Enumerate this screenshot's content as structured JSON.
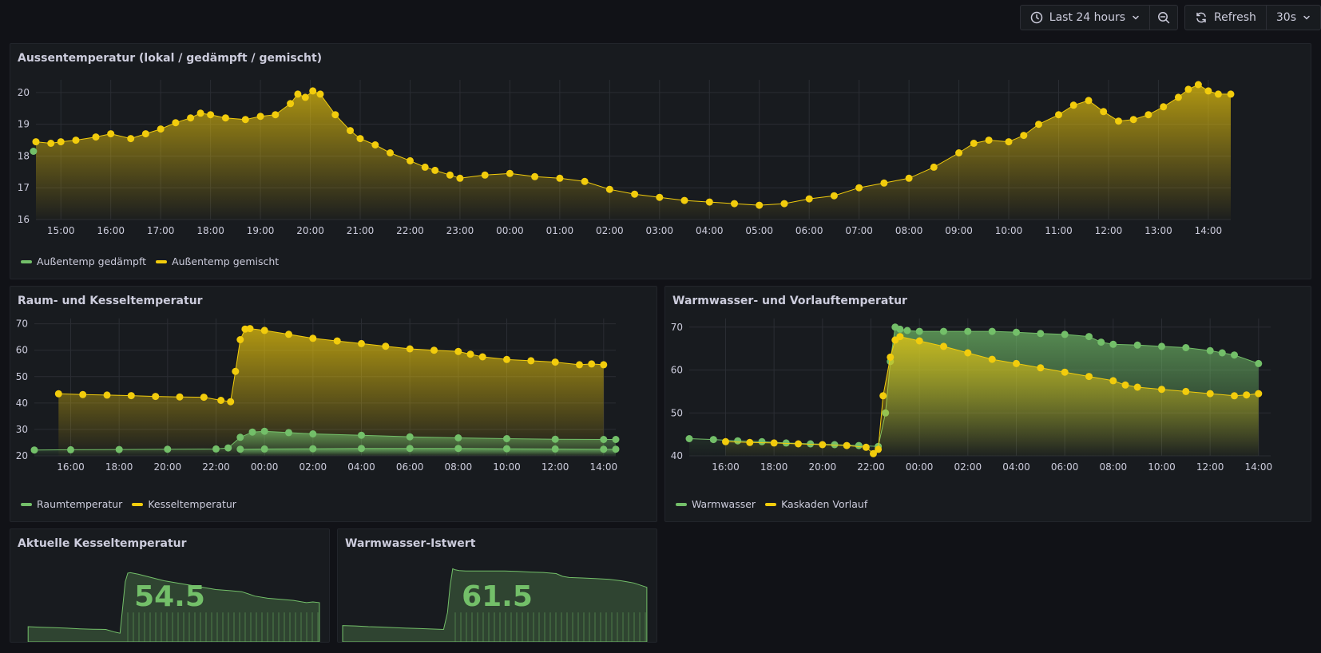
{
  "toolbar": {
    "time_range_label": "Last 24 hours",
    "refresh_label": "Refresh",
    "interval_label": "30s",
    "icons": [
      "clock-icon",
      "chevron-down-icon",
      "zoom-out-icon",
      "refresh-icon"
    ]
  },
  "colors": {
    "yellow": "#f2cc0c",
    "green": "#73bf69",
    "background": "#111217",
    "panel": "#181b1f",
    "grid": "#2a2d33"
  },
  "panels": {
    "aussen": {
      "title": "Aussentemperatur (lokal / gedämpft / gemischt)",
      "legend": [
        "Außentemp gedämpft",
        "Außentemp gemischt"
      ]
    },
    "raum": {
      "title": "Raum- und Kesseltemperatur",
      "legend": [
        "Raumtemperatur",
        "Kesseltemperatur"
      ]
    },
    "warmwasser": {
      "title": "Warmwasser- und Vorlauftemperatur",
      "legend": [
        "Warmwasser",
        "Kaskaden Vorlauf"
      ]
    },
    "kessel_stat": {
      "title": "Aktuelle Kesseltemperatur",
      "value": "54.5"
    },
    "ww_stat": {
      "title": "Warmwasser-Istwert",
      "value": "61.5"
    }
  },
  "chart_data": [
    {
      "type": "line",
      "panel": "aussen",
      "x_ticks": [
        "15:00",
        "16:00",
        "17:00",
        "18:00",
        "19:00",
        "20:00",
        "21:00",
        "22:00",
        "23:00",
        "00:00",
        "01:00",
        "02:00",
        "03:00",
        "04:00",
        "05:00",
        "06:00",
        "07:00",
        "08:00",
        "09:00",
        "10:00",
        "11:00",
        "12:00",
        "13:00",
        "14:00"
      ],
      "y_ticks": [
        16,
        17,
        18,
        19,
        20
      ],
      "ylim": [
        16,
        20.4
      ],
      "xlim": [
        14.5,
        38.45
      ],
      "series": [
        {
          "name": "Außentemp gemischt",
          "color": "#f2cc0c",
          "x": [
            14.5,
            14.8,
            15.0,
            15.3,
            15.7,
            16.0,
            16.4,
            16.7,
            17.0,
            17.3,
            17.6,
            17.8,
            18.0,
            18.3,
            18.7,
            19.0,
            19.3,
            19.6,
            19.75,
            19.9,
            20.05,
            20.2,
            20.5,
            20.8,
            21.0,
            21.3,
            21.6,
            22.0,
            22.3,
            22.5,
            22.8,
            23.0,
            23.5,
            24.0,
            24.5,
            25.0,
            25.5,
            26.0,
            26.5,
            27.0,
            27.5,
            28.0,
            28.5,
            29.0,
            29.5,
            30.0,
            30.5,
            31.0,
            31.5,
            32.0,
            32.5,
            33.0,
            33.3,
            33.6,
            34.0,
            34.3,
            34.6,
            35.0,
            35.3,
            35.6,
            35.9,
            36.2,
            36.5,
            36.8,
            37.1,
            37.4,
            37.6,
            37.8,
            38.0,
            38.2,
            38.45
          ],
          "y": [
            18.45,
            18.4,
            18.45,
            18.5,
            18.6,
            18.7,
            18.55,
            18.7,
            18.85,
            19.05,
            19.2,
            19.35,
            19.3,
            19.2,
            19.15,
            19.25,
            19.3,
            19.65,
            19.95,
            19.85,
            20.05,
            19.95,
            19.3,
            18.8,
            18.55,
            18.35,
            18.1,
            17.85,
            17.65,
            17.55,
            17.4,
            17.3,
            17.4,
            17.45,
            17.35,
            17.3,
            17.2,
            16.95,
            16.8,
            16.7,
            16.6,
            16.55,
            16.5,
            16.45,
            16.5,
            16.65,
            16.75,
            17.0,
            17.15,
            17.3,
            17.65,
            18.1,
            18.4,
            18.5,
            18.45,
            18.65,
            19.0,
            19.3,
            19.6,
            19.75,
            19.4,
            19.1,
            19.15,
            19.3,
            19.55,
            19.85,
            20.1,
            20.25,
            20.05,
            19.95,
            19.95
          ]
        },
        {
          "name": "Außentemp gedämpft",
          "color": "#73bf69",
          "x": [
            14.45
          ],
          "y": [
            18.15
          ]
        }
      ]
    },
    {
      "type": "line",
      "panel": "raum",
      "x_ticks": [
        "16:00",
        "18:00",
        "20:00",
        "22:00",
        "00:00",
        "02:00",
        "04:00",
        "06:00",
        "08:00",
        "10:00",
        "12:00",
        "14:00"
      ],
      "y_ticks": [
        20,
        30,
        40,
        50,
        60,
        70
      ],
      "ylim": [
        20,
        72
      ],
      "xlim": [
        14.5,
        38.5
      ],
      "series": [
        {
          "name": "Kesseltemperatur",
          "color": "#f2cc0c",
          "x": [
            15.5,
            16.5,
            17.5,
            18.5,
            19.5,
            20.5,
            21.5,
            22.2,
            22.6,
            22.8,
            23.0,
            23.2,
            23.4,
            24.0,
            25.0,
            26.0,
            27.0,
            28.0,
            29.0,
            30.0,
            31.0,
            32.0,
            32.5,
            33.0,
            34.0,
            35.0,
            36.0,
            37.0,
            37.5,
            38.0
          ],
          "y": [
            43.5,
            43.2,
            43,
            42.8,
            42.5,
            42.3,
            42.2,
            41,
            40.5,
            52,
            64,
            68,
            68.2,
            67.5,
            66,
            64.5,
            63.5,
            62.5,
            61.5,
            60.5,
            60,
            59.5,
            58.5,
            57.5,
            56.5,
            56,
            55.5,
            54.5,
            54.8,
            54.5
          ]
        },
        {
          "name": "Raumtemperatur",
          "color": "#73bf69",
          "x": [
            14.5,
            16,
            18,
            20,
            22,
            22.5,
            23,
            23.5,
            24,
            25,
            26,
            28,
            30,
            32,
            34,
            36,
            38,
            38.5
          ],
          "y": [
            22.2,
            22.3,
            22.4,
            22.5,
            22.6,
            23,
            27,
            29,
            29.3,
            28.8,
            28.3,
            27.8,
            27.2,
            26.8,
            26.5,
            26.3,
            26.2,
            26.2
          ]
        },
        {
          "name": "Raumtemperatur",
          "color": "#73bf69",
          "x": [
            23,
            24,
            26,
            28,
            30,
            32,
            34,
            36,
            38,
            38.5
          ],
          "y": [
            22.5,
            22.6,
            22.7,
            22.8,
            22.8,
            22.8,
            22.7,
            22.6,
            22.5,
            22.5
          ]
        }
      ]
    },
    {
      "type": "line",
      "panel": "warmwasser",
      "x_ticks": [
        "16:00",
        "18:00",
        "20:00",
        "22:00",
        "00:00",
        "02:00",
        "04:00",
        "06:00",
        "08:00",
        "10:00",
        "12:00",
        "14:00"
      ],
      "y_ticks": [
        40,
        50,
        60,
        70
      ],
      "ylim": [
        40,
        72
      ],
      "xlim": [
        14.5,
        38.5
      ],
      "series": [
        {
          "name": "Warmwasser",
          "color": "#73bf69",
          "x": [
            14.5,
            15.5,
            16.5,
            17.5,
            18.5,
            19.5,
            20.5,
            21.5,
            22.3,
            22.6,
            22.8,
            23.0,
            23.2,
            23.5,
            24.0,
            25.0,
            26.0,
            27.0,
            28.0,
            29.0,
            30.0,
            31.0,
            31.5,
            32.0,
            33.0,
            34.0,
            35.0,
            36.0,
            36.5,
            37.0,
            38.0
          ],
          "y": [
            44,
            43.8,
            43.5,
            43.3,
            43,
            42.8,
            42.6,
            42.4,
            42.2,
            50,
            62,
            70,
            69.5,
            69.2,
            69,
            69,
            69,
            69,
            68.8,
            68.5,
            68.3,
            67.8,
            66.5,
            66,
            65.8,
            65.5,
            65.2,
            64.5,
            64,
            63.5,
            61.5
          ]
        },
        {
          "name": "Kaskaden Vorlauf",
          "color": "#f2cc0c",
          "x": [
            16,
            17,
            18,
            19,
            20,
            21,
            21.8,
            22.1,
            22.3,
            22.5,
            22.8,
            23.0,
            23.2,
            24.0,
            25.0,
            26.0,
            27.0,
            28.0,
            29.0,
            30.0,
            31.0,
            32.0,
            32.5,
            33.0,
            34.0,
            35.0,
            36.0,
            37.0,
            37.5,
            38.0
          ],
          "y": [
            43.3,
            43.1,
            43,
            42.8,
            42.6,
            42.4,
            42,
            40.5,
            41.5,
            54,
            63,
            67,
            67.8,
            66.8,
            65.5,
            64,
            62.5,
            61.5,
            60.5,
            59.5,
            58.5,
            57.5,
            56.5,
            56,
            55.5,
            55,
            54.5,
            54,
            54.2,
            54.5
          ]
        }
      ]
    }
  ]
}
